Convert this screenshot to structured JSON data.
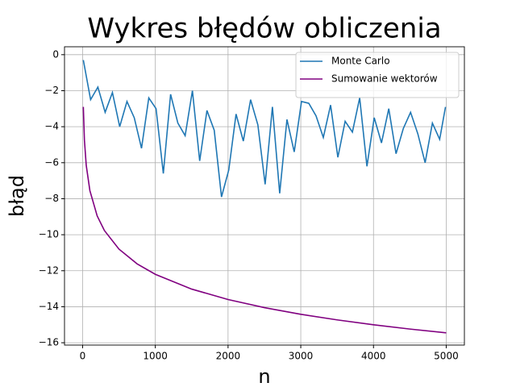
{
  "chart_data": {
    "type": "line",
    "title": "Wykres błędów obliczenia",
    "xlabel": "n",
    "ylabel": "błąd",
    "series": [
      {
        "name": "Monte Carlo",
        "color": "#1f77b4",
        "x": [
          10,
          110,
          210,
          310,
          410,
          510,
          610,
          710,
          810,
          910,
          1010,
          1110,
          1210,
          1310,
          1410,
          1510,
          1610,
          1710,
          1810,
          1910,
          2010,
          2110,
          2210,
          2310,
          2410,
          2510,
          2610,
          2710,
          2810,
          2910,
          3010,
          3110,
          3210,
          3310,
          3410,
          3510,
          3610,
          3710,
          3810,
          3910,
          4010,
          4110,
          4210,
          4310,
          4410,
          4510,
          4610,
          4710,
          4810,
          4910,
          4990
        ],
        "values": [
          -0.3,
          -2.5,
          -1.8,
          -3.2,
          -2.1,
          -4.0,
          -2.6,
          -3.5,
          -5.2,
          -2.4,
          -3.0,
          -6.6,
          -2.2,
          -3.8,
          -4.5,
          -2.0,
          -5.9,
          -3.1,
          -4.2,
          -7.9,
          -6.4,
          -3.3,
          -4.8,
          -2.5,
          -3.9,
          -7.2,
          -2.9,
          -7.7,
          -3.6,
          -5.4,
          -2.6,
          -2.7,
          -3.4,
          -4.6,
          -2.8,
          -5.7,
          -3.7,
          -4.3,
          -2.4,
          -6.2,
          -3.5,
          -4.9,
          -3.0,
          -5.5,
          -4.1,
          -3.2,
          -4.4,
          -6.0,
          -3.8,
          -4.7,
          -2.9
        ]
      },
      {
        "name": "Sumowanie wektorów",
        "color": "#800080",
        "x": [
          10,
          25,
          50,
          100,
          200,
          300,
          500,
          750,
          1000,
          1500,
          2000,
          2500,
          3000,
          3500,
          4000,
          4500,
          5000
        ],
        "values": [
          -2.9,
          -4.75,
          -6.15,
          -7.55,
          -8.95,
          -9.77,
          -10.8,
          -11.62,
          -12.2,
          -13.02,
          -13.6,
          -14.05,
          -14.42,
          -14.73,
          -15.0,
          -15.24,
          -15.45
        ]
      }
    ],
    "xlim": [
      -249,
      5250
    ],
    "ylim": [
      -16.13,
      0.44
    ],
    "xticks": [
      0,
      1000,
      2000,
      3000,
      4000,
      5000
    ],
    "yticks": [
      0,
      {
        "value": -2,
        "label": "−2"
      },
      {
        "value": -4,
        "label": "−4"
      },
      {
        "value": -6,
        "label": "−6"
      },
      {
        "value": -8,
        "label": "−8"
      },
      {
        "value": -10,
        "label": "−10"
      },
      {
        "value": -12,
        "label": "−12"
      },
      {
        "value": -14,
        "label": "−14"
      },
      {
        "value": -16,
        "label": "−16"
      }
    ],
    "grid": true,
    "legend": "upper right"
  }
}
